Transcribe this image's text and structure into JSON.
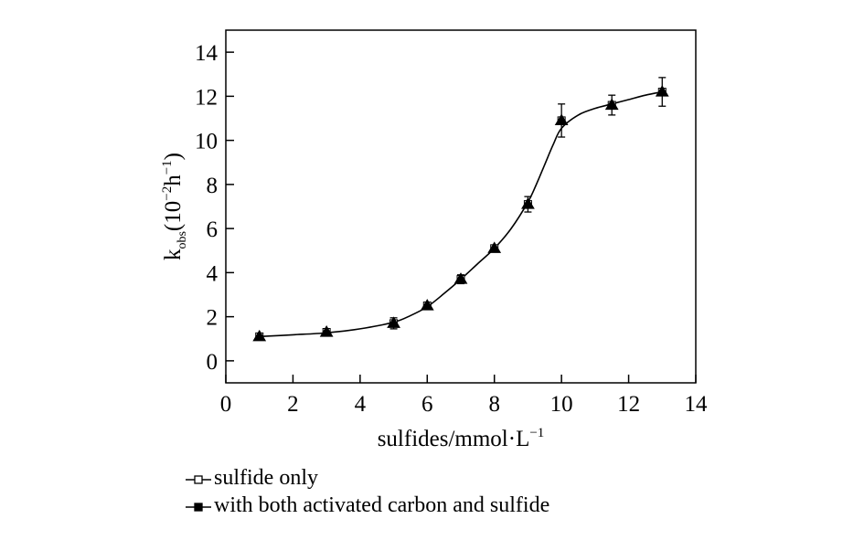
{
  "chart_data": {
    "type": "line",
    "title": "",
    "xlabel": "sulfides/mmol·L",
    "xlabel_sup": "−1",
    "ylabel": "k",
    "ylabel_sub": "obs",
    "ylabel_units": "(10",
    "ylabel_units_sup1": "−2",
    "ylabel_units_mid": "h",
    "ylabel_units_sup2": "−1",
    "ylabel_units_end": ")",
    "xlim": [
      0,
      14
    ],
    "ylim": [
      -1,
      15
    ],
    "xticks": [
      0,
      2,
      4,
      6,
      8,
      10,
      12,
      14
    ],
    "yticks": [
      0,
      2,
      4,
      6,
      8,
      10,
      12,
      14
    ],
    "grid": false,
    "legend_position": "bottom-left",
    "series": [
      {
        "name": "sulfide only",
        "marker": "open-square",
        "x": [
          1,
          3,
          5,
          6,
          7,
          8,
          9,
          10,
          11.5,
          13
        ],
        "y": [
          1.1,
          1.3,
          1.7,
          2.5,
          3.7,
          5.1,
          7.1,
          10.9,
          11.6,
          12.2
        ],
        "error": [
          0.15,
          0.15,
          0.25,
          0.15,
          0.2,
          0.15,
          0.35,
          0.75,
          0.45,
          0.65
        ]
      },
      {
        "name": "with both activated carbon and sulfide",
        "marker": "filled-triangle",
        "x": [
          1,
          3,
          5,
          6,
          7,
          8,
          9,
          10,
          11.5,
          13
        ],
        "y": [
          1.1,
          1.3,
          1.7,
          2.5,
          3.7,
          5.1,
          7.1,
          10.9,
          11.6,
          12.2
        ],
        "error": [
          0.15,
          0.15,
          0.25,
          0.15,
          0.2,
          0.15,
          0.35,
          0.75,
          0.45,
          0.65
        ]
      }
    ],
    "fit_curve": {
      "x": [
        1,
        2,
        3,
        4,
        5,
        5.5,
        6,
        6.5,
        7,
        7.5,
        8,
        8.5,
        9,
        9.25,
        9.5,
        9.75,
        10,
        10.5,
        11,
        11.5,
        12,
        12.5,
        13
      ],
      "y": [
        1.1,
        1.18,
        1.27,
        1.45,
        1.75,
        2.05,
        2.45,
        3.05,
        3.7,
        4.4,
        5.1,
        6.0,
        7.2,
        8.0,
        8.9,
        9.8,
        10.55,
        11.15,
        11.45,
        11.65,
        11.85,
        12.05,
        12.2
      ]
    },
    "colors": {
      "line": "#000000",
      "marker": "#000000"
    }
  }
}
